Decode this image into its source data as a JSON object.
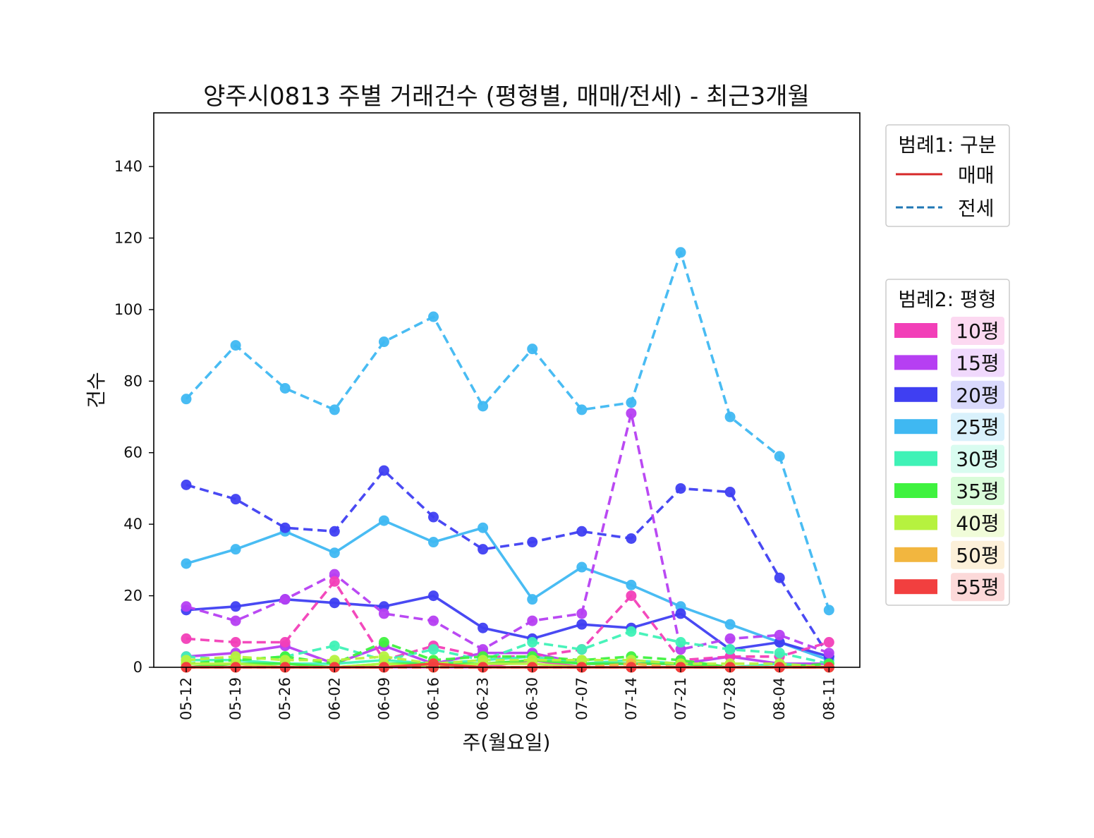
{
  "chart_data": {
    "type": "line",
    "title": "양주시0813 주별 거래건수 (평형별, 매매/전세) - 최근3개월",
    "xlabel": "주(월요일)",
    "ylabel": "건수",
    "ylim": [
      0,
      155
    ],
    "yticks": [
      0,
      20,
      40,
      60,
      80,
      100,
      120,
      140
    ],
    "categories": [
      "05-12",
      "05-19",
      "05-26",
      "06-02",
      "06-09",
      "06-16",
      "06-23",
      "06-30",
      "07-07",
      "07-14",
      "07-21",
      "07-28",
      "08-04",
      "08-11"
    ],
    "grid": false,
    "legend1": {
      "title": "범례1: 구분",
      "position": "right-top",
      "entries": [
        {
          "label": "매매",
          "style": "solid",
          "color": "#d62728"
        },
        {
          "label": "전세",
          "style": "dashed",
          "color": "#1f77b4"
        }
      ]
    },
    "legend2": {
      "title": "범례2: 평형",
      "position": "right-middle",
      "entries": [
        {
          "label": "10평",
          "color": "#f23fb8",
          "bg": "#fcd9f1"
        },
        {
          "label": "15평",
          "color": "#b63ff2",
          "bg": "#f0d9fc"
        },
        {
          "label": "20평",
          "color": "#3f3ff2",
          "bg": "#d9d9fc"
        },
        {
          "label": "25평",
          "color": "#3fb8f2",
          "bg": "#d9f1fc"
        },
        {
          "label": "30평",
          "color": "#3ff2b6",
          "bg": "#d9fcf0"
        },
        {
          "label": "35평",
          "color": "#3ff23f",
          "bg": "#d9fcd9"
        },
        {
          "label": "40평",
          "color": "#b6f23f",
          "bg": "#f0fcd9"
        },
        {
          "label": "50평",
          "color": "#f2b63f",
          "bg": "#fcf0d9"
        },
        {
          "label": "55평",
          "color": "#f23f3f",
          "bg": "#fcd9d9"
        }
      ]
    },
    "series": [
      {
        "size": "25평",
        "kind": "전세",
        "values": [
          75,
          90,
          78,
          72,
          91,
          98,
          73,
          89,
          72,
          74,
          116,
          70,
          59,
          16
        ]
      },
      {
        "size": "25평",
        "kind": "매매",
        "values": [
          29,
          33,
          38,
          32,
          41,
          35,
          39,
          19,
          28,
          23,
          17,
          12,
          7,
          2
        ]
      },
      {
        "size": "20평",
        "kind": "전세",
        "values": [
          51,
          47,
          39,
          38,
          55,
          42,
          33,
          35,
          38,
          36,
          50,
          49,
          25,
          3
        ]
      },
      {
        "size": "20평",
        "kind": "매매",
        "values": [
          16,
          17,
          19,
          18,
          17,
          20,
          11,
          8,
          12,
          11,
          15,
          5,
          7,
          3
        ]
      },
      {
        "size": "15평",
        "kind": "전세",
        "values": [
          17,
          13,
          19,
          26,
          15,
          13,
          5,
          13,
          15,
          71,
          5,
          8,
          9,
          4
        ]
      },
      {
        "size": "15평",
        "kind": "매매",
        "values": [
          3,
          4,
          6,
          1,
          6,
          1,
          4,
          4,
          1,
          1,
          1,
          3,
          1,
          1
        ]
      },
      {
        "size": "10평",
        "kind": "전세",
        "values": [
          8,
          7,
          7,
          24,
          2,
          6,
          3,
          3,
          5,
          20,
          2,
          3,
          3,
          7
        ]
      },
      {
        "size": "10평",
        "kind": "매매",
        "values": [
          0,
          1,
          0,
          0,
          0,
          0,
          0,
          2,
          0,
          0,
          0,
          0,
          0,
          0
        ]
      },
      {
        "size": "30평",
        "kind": "전세",
        "values": [
          3,
          2,
          3,
          6,
          2,
          5,
          2,
          7,
          5,
          10,
          7,
          5,
          4,
          1
        ]
      },
      {
        "size": "30평",
        "kind": "매매",
        "values": [
          2,
          2,
          1,
          1,
          2,
          1,
          2,
          3,
          1,
          2,
          1,
          0,
          1,
          0
        ]
      },
      {
        "size": "35평",
        "kind": "전세",
        "values": [
          1,
          2,
          3,
          1,
          7,
          2,
          3,
          3,
          2,
          3,
          2,
          0,
          0,
          1
        ]
      },
      {
        "size": "35평",
        "kind": "매매",
        "values": [
          0,
          1,
          1,
          0,
          1,
          1,
          1,
          2,
          1,
          1,
          1,
          0,
          0,
          0
        ]
      },
      {
        "size": "40평",
        "kind": "전세",
        "values": [
          2,
          3,
          2,
          2,
          3,
          1,
          2,
          2,
          2,
          2,
          1,
          1,
          1,
          0
        ]
      },
      {
        "size": "40평",
        "kind": "매매",
        "values": [
          1,
          1,
          0,
          0,
          1,
          0,
          1,
          1,
          0,
          0,
          0,
          0,
          0,
          0
        ]
      },
      {
        "size": "50평",
        "kind": "전세",
        "values": [
          0,
          0,
          0,
          0,
          0,
          0,
          0,
          0,
          0,
          1,
          0,
          0,
          0,
          0
        ]
      },
      {
        "size": "50평",
        "kind": "매매",
        "values": [
          0,
          0,
          0,
          0,
          0,
          1,
          0,
          0,
          0,
          0,
          0,
          0,
          0,
          0
        ]
      },
      {
        "size": "55평",
        "kind": "전세",
        "values": [
          0,
          0,
          0,
          0,
          0,
          0,
          0,
          0,
          0,
          0,
          0,
          0,
          0,
          0
        ]
      },
      {
        "size": "55평",
        "kind": "매매",
        "values": [
          0,
          0,
          0,
          0,
          0,
          1,
          0,
          0,
          0,
          0,
          0,
          0,
          0,
          0
        ]
      }
    ]
  }
}
